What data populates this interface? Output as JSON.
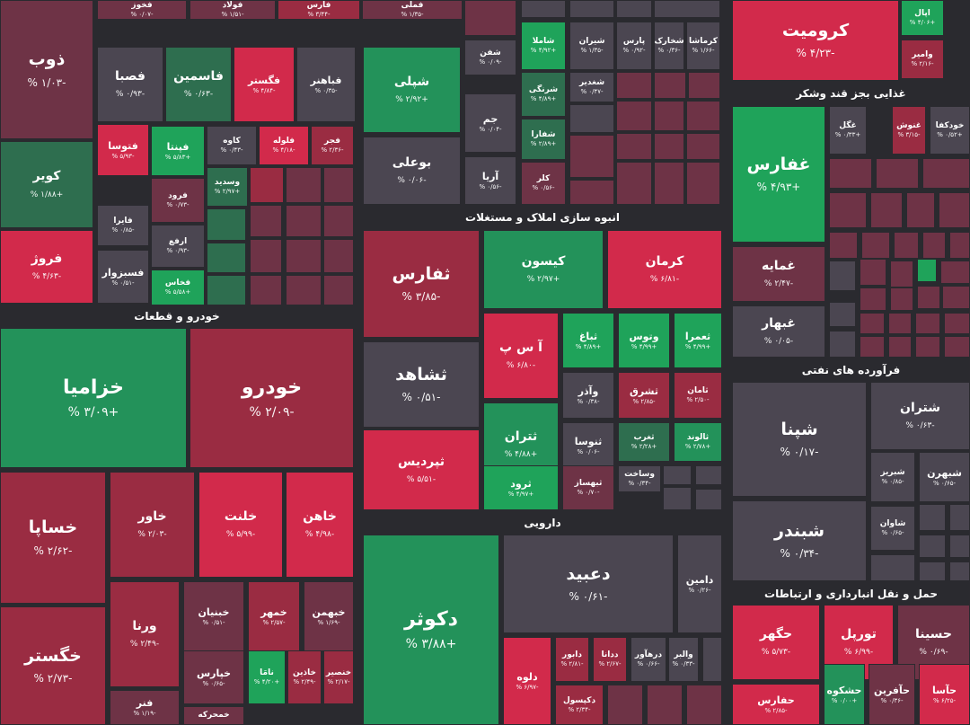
{
  "colors": {
    "strong_green": "#1fa35a",
    "green": "#23925a",
    "dark_green": "#2e6e4f",
    "neutral": "#4b4651",
    "dark_red": "#6e3346",
    "red": "#9a2c42",
    "strong_red": "#d22a4b"
  },
  "sectors": [
    "خودرو و قطعات",
    "انبوه سازی املاک و مستغلات",
    "غذایی بجز قند وشکر",
    "فرآورده های نفتی",
    "دارویی",
    "حمل و نقل انبارداری و ارتباطات"
  ],
  "chart_data": {
    "type": "treemap",
    "tiles": [
      {
        "name": "ذوب",
        "change": "-۱/۰۳ %",
        "tone": "dark_red"
      },
      {
        "name": "کویر",
        "change": "+۱/۸۸ %",
        "tone": "dark_green"
      },
      {
        "name": "فروژ",
        "change": "-۴/۶۳ %",
        "tone": "strong_red"
      },
      {
        "name": "فصبا",
        "change": "-۰/۹۳ %",
        "tone": "neutral"
      },
      {
        "name": "فاسمین",
        "change": "-۰/۶۳ %",
        "tone": "dark_green"
      },
      {
        "name": "فگستر",
        "change": "-۴/۸۴ %",
        "tone": "strong_red"
      },
      {
        "name": "فباهنر",
        "change": "-۰/۳۵ %",
        "tone": "neutral"
      },
      {
        "name": "فتوسا",
        "change": "-۵/۹۳ %",
        "tone": "strong_red"
      },
      {
        "name": "فپنتا",
        "change": "+۵/۸۳ %",
        "tone": "strong_green"
      },
      {
        "name": "کاوه",
        "change": "-۰/۴۳ %",
        "tone": "neutral"
      },
      {
        "name": "فلوله",
        "change": "-۴/۱۸ %",
        "tone": "strong_red"
      },
      {
        "name": "فجر",
        "change": "-۲/۳۶ %",
        "tone": "red"
      },
      {
        "name": "فرود",
        "change": "-۰/۷۳ %",
        "tone": "dark_red"
      },
      {
        "name": "وسدید",
        "change": "+۲/۹۷ %",
        "tone": "dark_green"
      },
      {
        "name": "فایرا",
        "change": "-۰/۸۵ %",
        "tone": "neutral"
      },
      {
        "name": "ارفع",
        "change": "-۰/۹۳ %",
        "tone": "neutral"
      },
      {
        "name": "فسبزوار",
        "change": "-۰/۵۱ %",
        "tone": "neutral"
      },
      {
        "name": "فخاس",
        "change": "+۵/۵۸ %",
        "tone": "strong_green"
      },
      {
        "name": "خزامیا",
        "change": "+۳/۰۹ %",
        "tone": "green"
      },
      {
        "name": "خودرو",
        "change": "-۲/۰۹ %",
        "tone": "red"
      },
      {
        "name": "خساپا",
        "change": "-۲/۶۲ %",
        "tone": "red"
      },
      {
        "name": "خاور",
        "change": "-۲/۰۳ %",
        "tone": "red"
      },
      {
        "name": "خلنت",
        "change": "-۵/۹۹ %",
        "tone": "strong_red"
      },
      {
        "name": "خاهن",
        "change": "-۴/۹۸ %",
        "tone": "strong_red"
      },
      {
        "name": "خگستر",
        "change": "-۲/۷۳ %",
        "tone": "red"
      },
      {
        "name": "ورنا",
        "change": "-۲/۴۹ %",
        "tone": "red"
      },
      {
        "name": "خبنیان",
        "change": "-۰/۵۱ %",
        "tone": "dark_red"
      },
      {
        "name": "خمهر",
        "change": "-۲/۵۷ %",
        "tone": "red"
      },
      {
        "name": "خبهمن",
        "change": "-۱/۶۹ %",
        "tone": "dark_red"
      },
      {
        "name": "خپارس",
        "change": "-۰/۶۵ %",
        "tone": "dark_red"
      },
      {
        "name": "نامَا",
        "change": "+۴/۲۰ %",
        "tone": "strong_green"
      },
      {
        "name": "خاذین",
        "change": "-۲/۴۹ %",
        "tone": "red"
      },
      {
        "name": "خنصیر",
        "change": "-۲/۱۷ %",
        "tone": "red"
      },
      {
        "name": "فنر",
        "change": "-۱/۱۹ %",
        "tone": "dark_red"
      },
      {
        "name": "خمحرکه",
        "change": "",
        "tone": "dark_red"
      },
      {
        "name": "شپلی",
        "change": "+۲/۹۲ %",
        "tone": "green"
      },
      {
        "name": "بوعلی",
        "change": "-۰/۰۶ %",
        "tone": "neutral"
      },
      {
        "name": "شفن",
        "change": "-۰/۰۹ %",
        "tone": "neutral"
      },
      {
        "name": "شاملا",
        "change": "+۴/۹۲ %",
        "tone": "strong_green"
      },
      {
        "name": "شیران",
        "change": "-۱/۳۵ %",
        "tone": "neutral"
      },
      {
        "name": "پارس",
        "change": "-۰/۹۲ %",
        "tone": "neutral"
      },
      {
        "name": "شخارک",
        "change": "-۰/۳۶ %",
        "tone": "neutral"
      },
      {
        "name": "کرماشا",
        "change": "-۱/۶۶ %",
        "tone": "neutral"
      },
      {
        "name": "شرنگی",
        "change": "+۴/۸۹ %",
        "tone": "dark_green"
      },
      {
        "name": "شغدیر",
        "change": "-۰/۴۷ %",
        "tone": "neutral"
      },
      {
        "name": "جم",
        "change": "-۰/۰۴ %",
        "tone": "neutral"
      },
      {
        "name": "شفارا",
        "change": "+۲/۸۹ %",
        "tone": "dark_green"
      },
      {
        "name": "آریا",
        "change": "-۰/۵۶ %",
        "tone": "neutral"
      },
      {
        "name": "کلر",
        "change": "-۰/۵۶ %",
        "tone": "dark_red"
      },
      {
        "name": "کرومیت",
        "change": "-۴/۲۳ %",
        "tone": "strong_red"
      },
      {
        "name": "اپال",
        "change": "+۴/۰۶ %",
        "tone": "strong_green"
      },
      {
        "name": "وامیر",
        "change": "-۲/۱۶ %",
        "tone": "red"
      },
      {
        "name": "ثفارس",
        "change": "-۳/۸۵ %",
        "tone": "red"
      },
      {
        "name": "کیسون",
        "change": "+۲/۹۷ %",
        "tone": "green"
      },
      {
        "name": "کرمان",
        "change": "-۶/۸۱ %",
        "tone": "strong_red"
      },
      {
        "name": "ثشاهد",
        "change": "-۰/۵۱ %",
        "tone": "neutral"
      },
      {
        "name": "آ س پ",
        "change": "-۶/۸۰ %",
        "tone": "strong_red"
      },
      {
        "name": "ثباغ",
        "change": "+۴/۸۹ %",
        "tone": "strong_green"
      },
      {
        "name": "وتوس",
        "change": "+۴/۹۹ %",
        "tone": "strong_green"
      },
      {
        "name": "ثعمرا",
        "change": "+۴/۹۹ %",
        "tone": "strong_green"
      },
      {
        "name": "وآذر",
        "change": "-۰/۳۸ %",
        "tone": "neutral"
      },
      {
        "name": "ثشرق",
        "change": "-۲/۸۵ %",
        "tone": "red"
      },
      {
        "name": "ثامان",
        "change": "-۲/۵۰ %",
        "tone": "red"
      },
      {
        "name": "ثتران",
        "change": "+۴/۸۸ %",
        "tone": "green"
      },
      {
        "name": "ثنوسا",
        "change": "-۰/۰۶ %",
        "tone": "neutral"
      },
      {
        "name": "ثغرب",
        "change": "+۲/۲۸ %",
        "tone": "dark_green"
      },
      {
        "name": "ثالوند",
        "change": "+۲/۷۸ %",
        "tone": "green"
      },
      {
        "name": "ثپردیس",
        "change": "-۵/۵۱ %",
        "tone": "strong_red"
      },
      {
        "name": "ثرود",
        "change": "+۴/۹۷ %",
        "tone": "strong_green"
      },
      {
        "name": "ثبهساز",
        "change": "-۰/۷۰ %",
        "tone": "dark_red"
      },
      {
        "name": "وساخت",
        "change": "-۰/۳۴ %",
        "tone": "neutral"
      },
      {
        "name": "غفارس",
        "change": "+۴/۹۳ %",
        "tone": "strong_green"
      },
      {
        "name": "غگل",
        "change": "+۰/۳۳ %",
        "tone": "neutral"
      },
      {
        "name": "غنوش",
        "change": "-۳/۱۵ %",
        "tone": "red"
      },
      {
        "name": "خودکفا",
        "change": "+۰/۵۲ %",
        "tone": "neutral"
      },
      {
        "name": "غمایه",
        "change": "-۲/۴۷ %",
        "tone": "dark_red"
      },
      {
        "name": "غبهار",
        "change": "-۰/۰۵ %",
        "tone": "neutral"
      },
      {
        "name": "شپنا",
        "change": "-۰/۱۷ %",
        "tone": "neutral"
      },
      {
        "name": "شتران",
        "change": "-۰/۶۳ %",
        "tone": "neutral"
      },
      {
        "name": "شبریز",
        "change": "-۰/۸۵ %",
        "tone": "neutral"
      },
      {
        "name": "شبهرن",
        "change": "-۰/۶۵ %",
        "tone": "neutral"
      },
      {
        "name": "شبندر",
        "change": "-۰/۳۴ %",
        "tone": "neutral"
      },
      {
        "name": "شاوان",
        "change": "-۰/۶۵ %",
        "tone": "neutral"
      },
      {
        "name": "دکوثر",
        "change": "+۳/۸۸ %",
        "tone": "green"
      },
      {
        "name": "دعبید",
        "change": "-۰/۶۱ %",
        "tone": "neutral"
      },
      {
        "name": "دامین",
        "change": "-۰/۲۶ %",
        "tone": "neutral"
      },
      {
        "name": "دلوه",
        "change": "-۶/۹۷ %",
        "tone": "strong_red"
      },
      {
        "name": "دابور",
        "change": "-۲/۸۱ %",
        "tone": "red"
      },
      {
        "name": "ددانا",
        "change": "-۲/۶۷ %",
        "tone": "red"
      },
      {
        "name": "درهآور",
        "change": "-۰/۶۶ %",
        "tone": "neutral"
      },
      {
        "name": "والبر",
        "change": "-۰/۳۳ %",
        "tone": "neutral"
      },
      {
        "name": "دکپسول",
        "change": "-۲/۳۴ %",
        "tone": "red"
      },
      {
        "name": "حگهر",
        "change": "-۵/۷۳ %",
        "tone": "strong_red"
      },
      {
        "name": "تورپل",
        "change": "-۶/۹۹ %",
        "tone": "strong_red"
      },
      {
        "name": "حسینا",
        "change": "-۰/۶۹ %",
        "tone": "dark_red"
      },
      {
        "name": "حشکوه",
        "change": "+۰/۰۰ %",
        "tone": "green"
      },
      {
        "name": "حآفرین",
        "change": "-۰/۳۶ %",
        "tone": "dark_red"
      },
      {
        "name": "حآسا",
        "change": "-۶/۲۵ %",
        "tone": "strong_red"
      },
      {
        "name": "حفارس",
        "change": "-۲/۸۵ %",
        "tone": "strong_red"
      },
      {
        "name": "فملی",
        "change": "-۱/۳۵ %",
        "tone": "dark_red"
      },
      {
        "name": "فولاد",
        "change": "-۱/۵۱ %",
        "tone": "dark_red"
      },
      {
        "name": "فارس",
        "change": "-۳/۴۴ %",
        "tone": "red"
      },
      {
        "name": "فخوز",
        "change": "-۰/۰۷ %",
        "tone": "dark_red"
      }
    ]
  }
}
